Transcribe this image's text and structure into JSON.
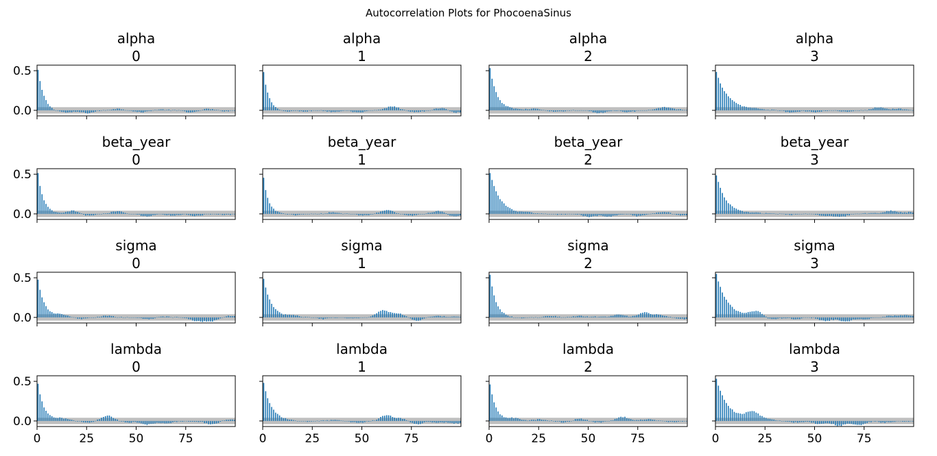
{
  "figure": {
    "title": "Autocorrelation Plots for PhocoenaSinus"
  },
  "colors": {
    "bar": "#1f77b4",
    "band": "#bfbfbf"
  },
  "chart_data": {
    "type": "bar",
    "layout": "4x4 grid",
    "variables": [
      "alpha",
      "beta_year",
      "sigma",
      "lambda"
    ],
    "chains": [
      "0",
      "1",
      "2",
      "3"
    ],
    "x_ticks": [
      0,
      25,
      50,
      75
    ],
    "y_ticks": [
      0.0,
      0.5
    ],
    "y_tick_labels": [
      "0.0",
      "0.5"
    ],
    "x_tick_labels": [
      "0",
      "25",
      "50",
      "75"
    ],
    "xlim": [
      0,
      100
    ],
    "ylim": [
      -0.07,
      0.57
    ],
    "confidence_band": 0.04,
    "n_lags": 100,
    "panels": [
      {
        "variable": "alpha",
        "chain": "0",
        "acf0": 0.51,
        "decay": 3.0,
        "noise": [
          [
            8,
            -0.02
          ],
          [
            15,
            -0.03
          ],
          [
            25,
            -0.035
          ],
          [
            40,
            0.02
          ],
          [
            52,
            -0.025
          ],
          [
            62,
            0.01
          ],
          [
            78,
            -0.03
          ],
          [
            85,
            0.02
          ],
          [
            95,
            -0.01
          ]
        ]
      },
      {
        "variable": "alpha",
        "chain": "1",
        "acf0": 0.48,
        "decay": 2.6,
        "noise": [
          [
            10,
            -0.02
          ],
          [
            20,
            -0.015
          ],
          [
            35,
            -0.02
          ],
          [
            48,
            -0.03
          ],
          [
            65,
            0.05
          ],
          [
            77,
            -0.025
          ],
          [
            90,
            0.03
          ],
          [
            97,
            -0.03
          ]
        ]
      },
      {
        "variable": "alpha",
        "chain": "2",
        "acf0": 0.53,
        "decay": 3.5,
        "noise": [
          [
            12,
            0.01
          ],
          [
            22,
            0.02
          ],
          [
            33,
            -0.02
          ],
          [
            55,
            -0.035
          ],
          [
            70,
            -0.02
          ],
          [
            88,
            0.04
          ],
          [
            95,
            0.01
          ]
        ]
      },
      {
        "variable": "alpha",
        "chain": "3",
        "acf0": 0.48,
        "decay": 6.0,
        "noise": [
          [
            20,
            0.01
          ],
          [
            38,
            -0.03
          ],
          [
            50,
            -0.025
          ],
          [
            65,
            -0.015
          ],
          [
            82,
            0.04
          ],
          [
            92,
            0.02
          ]
        ]
      },
      {
        "variable": "beta_year",
        "chain": "0",
        "acf0": 0.51,
        "decay": 2.8,
        "noise": [
          [
            18,
            0.04
          ],
          [
            25,
            -0.025
          ],
          [
            40,
            0.035
          ],
          [
            55,
            -0.03
          ],
          [
            68,
            -0.02
          ],
          [
            80,
            -0.025
          ],
          [
            95,
            -0.01
          ]
        ]
      },
      {
        "variable": "beta_year",
        "chain": "1",
        "acf0": 0.45,
        "decay": 2.5,
        "noise": [
          [
            15,
            -0.015
          ],
          [
            35,
            0.02
          ],
          [
            50,
            -0.02
          ],
          [
            62,
            0.05
          ],
          [
            75,
            -0.02
          ],
          [
            88,
            0.035
          ],
          [
            96,
            -0.03
          ]
        ]
      },
      {
        "variable": "beta_year",
        "chain": "2",
        "acf0": 0.52,
        "decay": 5.0,
        "noise": [
          [
            20,
            0.01
          ],
          [
            35,
            -0.01
          ],
          [
            50,
            -0.04
          ],
          [
            60,
            -0.035
          ],
          [
            75,
            -0.03
          ],
          [
            88,
            0.025
          ],
          [
            97,
            -0.02
          ]
        ]
      },
      {
        "variable": "beta_year",
        "chain": "3",
        "acf0": 0.49,
        "decay": 4.8,
        "noise": [
          [
            20,
            0.01
          ],
          [
            38,
            -0.01
          ],
          [
            55,
            -0.03
          ],
          [
            63,
            -0.035
          ],
          [
            78,
            0.01
          ],
          [
            88,
            0.04
          ],
          [
            97,
            0.02
          ]
        ]
      },
      {
        "variable": "sigma",
        "chain": "0",
        "acf0": 0.48,
        "decay": 3.2,
        "noise": [
          [
            12,
            0.03
          ],
          [
            22,
            -0.02
          ],
          [
            35,
            0.02
          ],
          [
            55,
            -0.02
          ],
          [
            65,
            0.01
          ],
          [
            80,
            -0.045
          ],
          [
            87,
            -0.05
          ],
          [
            97,
            0.02
          ]
        ]
      },
      {
        "variable": "sigma",
        "chain": "1",
        "acf0": 0.49,
        "decay": 3.8,
        "noise": [
          [
            15,
            0.02
          ],
          [
            30,
            -0.02
          ],
          [
            45,
            -0.015
          ],
          [
            60,
            0.09
          ],
          [
            68,
            0.05
          ],
          [
            77,
            -0.04
          ],
          [
            87,
            0.02
          ],
          [
            96,
            0.01
          ]
        ]
      },
      {
        "variable": "sigma",
        "chain": "2",
        "acf0": 0.54,
        "decay": 3.0,
        "noise": [
          [
            15,
            -0.01
          ],
          [
            30,
            0.02
          ],
          [
            45,
            0.02
          ],
          [
            55,
            0.01
          ],
          [
            65,
            0.04
          ],
          [
            78,
            0.06
          ],
          [
            86,
            0.03
          ],
          [
            97,
            -0.02
          ]
        ]
      },
      {
        "variable": "sigma",
        "chain": "3",
        "acf0": 0.55,
        "decay": 5.5,
        "noise": [
          [
            20,
            0.07
          ],
          [
            28,
            -0.03
          ],
          [
            40,
            -0.02
          ],
          [
            55,
            -0.045
          ],
          [
            65,
            -0.055
          ],
          [
            75,
            -0.02
          ],
          [
            88,
            0.02
          ],
          [
            96,
            0.03
          ]
        ]
      },
      {
        "variable": "lambda",
        "chain": "0",
        "acf0": 0.47,
        "decay": 3.0,
        "noise": [
          [
            12,
            0.03
          ],
          [
            25,
            -0.02
          ],
          [
            35,
            0.07
          ],
          [
            45,
            -0.02
          ],
          [
            55,
            -0.045
          ],
          [
            65,
            -0.03
          ],
          [
            78,
            -0.01
          ],
          [
            88,
            -0.045
          ],
          [
            96,
            0.02
          ]
        ]
      },
      {
        "variable": "lambda",
        "chain": "1",
        "acf0": 0.48,
        "decay": 4.0,
        "noise": [
          [
            20,
            -0.01
          ],
          [
            35,
            0.01
          ],
          [
            48,
            -0.025
          ],
          [
            62,
            0.07
          ],
          [
            70,
            0.03
          ],
          [
            77,
            -0.045
          ],
          [
            88,
            -0.02
          ],
          [
            97,
            -0.03
          ]
        ]
      },
      {
        "variable": "lambda",
        "chain": "2",
        "acf0": 0.46,
        "decay": 3.0,
        "noise": [
          [
            12,
            0.03
          ],
          [
            25,
            0.02
          ],
          [
            38,
            -0.02
          ],
          [
            45,
            0.03
          ],
          [
            55,
            -0.02
          ],
          [
            67,
            0.05
          ],
          [
            80,
            0.025
          ],
          [
            92,
            -0.015
          ]
        ]
      },
      {
        "variable": "lambda",
        "chain": "3",
        "acf0": 0.53,
        "decay": 6.0,
        "noise": [
          [
            18,
            0.1
          ],
          [
            25,
            0.02
          ],
          [
            40,
            -0.02
          ],
          [
            52,
            -0.04
          ],
          [
            62,
            -0.06
          ],
          [
            72,
            -0.05
          ],
          [
            85,
            -0.02
          ],
          [
            96,
            -0.01
          ]
        ]
      }
    ]
  }
}
